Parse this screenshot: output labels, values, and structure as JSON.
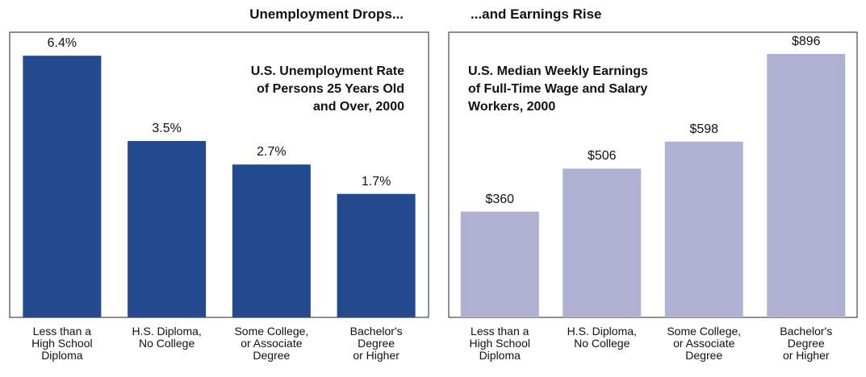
{
  "chart_data": [
    {
      "type": "bar",
      "title": "Unemployment Drops...",
      "subtitle": "U.S. Unemployment Rate\nof Persons 25 Years Old\nand Over, 2000",
      "categories": [
        "Less than a\nHigh School\nDiploma",
        "H.S. Diploma,\nNo College",
        "Some College,\nor Associate\nDegree",
        "Bachelor's\nDegree\nor Higher"
      ],
      "values": [
        6.4,
        3.5,
        2.7,
        1.7
      ],
      "value_labels": [
        "6.4%",
        "3.5%",
        "2.7%",
        "1.7%"
      ],
      "color": "#234a8f",
      "ylim": [
        -2.5,
        7.2
      ]
    },
    {
      "type": "bar",
      "title": "...and Earnings Rise",
      "subtitle": "U.S. Median Weekly Earnings\nof Full-Time Wage and Salary\nWorkers, 2000",
      "categories": [
        "Less than a\nHigh School\nDiploma",
        "H.S. Diploma,\nNo College",
        "Some College,\nor Associate\nDegree",
        "Bachelor's\nDegree\nor Higher"
      ],
      "values": [
        360,
        506,
        598,
        896
      ],
      "value_labels": [
        "$360",
        "$506",
        "$598",
        "$896"
      ],
      "color": "#b0b0d2",
      "ylim": [
        0,
        970
      ]
    }
  ]
}
